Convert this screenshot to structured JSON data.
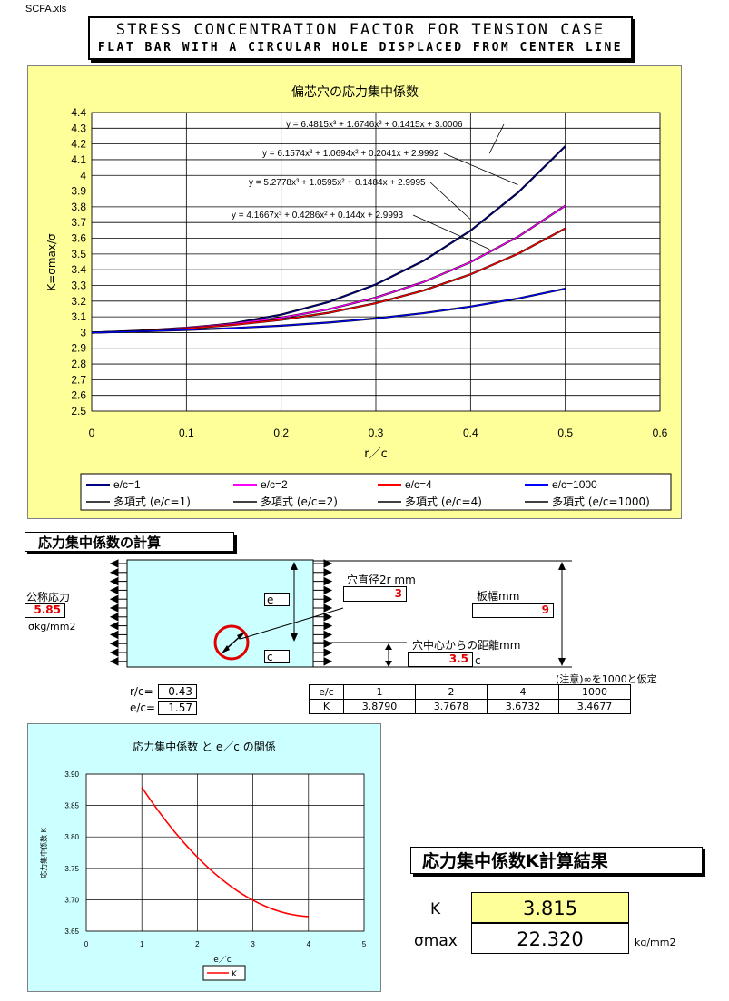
{
  "file_name": "SCFA.xls",
  "title": {
    "line1": "STRESS CONCENTRATION FACTOR FOR TENSION CASE",
    "line2": "FLAT BAR WITH A CIRCULAR HOLE DISPLACED FROM CENTER LINE"
  },
  "chart_data": [
    {
      "type": "line",
      "title": "偏芯穴の応力集中係数",
      "xlabel": "r／c",
      "ylabel": "K=σmax/σ",
      "xlim": [
        0,
        0.6
      ],
      "ylim": [
        2.5,
        4.4
      ],
      "x_ticks": [
        "0",
        "0.1",
        "0.2",
        "0.3",
        "0.4",
        "0.5",
        "0.6"
      ],
      "y_ticks": [
        "2.5",
        "2.6",
        "2.7",
        "2.8",
        "2.9",
        "3",
        "3.1",
        "3.2",
        "3.3",
        "3.4",
        "3.5",
        "3.6",
        "3.7",
        "3.8",
        "3.9",
        "4",
        "4.1",
        "4.2",
        "4.3",
        "4.4"
      ],
      "grid": true,
      "legend_position": "bottom",
      "x": [
        0,
        0.05,
        0.1,
        0.15,
        0.2,
        0.25,
        0.3,
        0.35,
        0.4,
        0.45,
        0.5
      ],
      "series": [
        {
          "name": "e/c=1",
          "color": "#000080",
          "values": [
            3.0006,
            3.0091,
            3.0269,
            3.0597,
            3.1138,
            3.194,
            3.3063,
            3.4558,
            3.6486,
            3.8904,
            4.1857
          ]
        },
        {
          "name": "e/c=2",
          "color": "#ff00ff",
          "values": [
            2.9992,
            3.012,
            3.0305,
            3.0563,
            3.094,
            3.1479,
            3.2221,
            3.3209,
            3.4485,
            3.6091,
            3.8069
          ]
        },
        {
          "name": "e/c=4",
          "color": "#ff0000",
          "values": [
            2.9995,
            3.0097,
            3.0254,
            3.0489,
            3.0812,
            3.1259,
            3.1866,
            3.2669,
            3.3706,
            3.5012,
            3.6625
          ]
        },
        {
          "name": "e/c=1000",
          "color": "#0000ff",
          "values": [
            2.9993,
            3.0076,
            3.017,
            3.0287,
            3.0437,
            3.0638,
            3.0897,
            3.1232,
            3.1652,
            3.2167,
            3.2792
          ]
        }
      ],
      "trendlines": [
        {
          "name": "多項式 (e/c=1)",
          "equation": "y = 6.4815x³ + 1.6746x² + 0.1415x + 3.0006"
        },
        {
          "name": "多項式 (e/c=2)",
          "equation": "y = 6.1574x³ + 1.0694x² + 0.2041x + 2.9992"
        },
        {
          "name": "多項式 (e/c=4)",
          "equation": "y = 5.2778x³ + 1.0595x² + 0.1484x + 2.9995"
        },
        {
          "name": "多項式 (e/c=1000)",
          "equation": "y = 4.1667x³ + 0.4286x² + 0.144x + 2.9993"
        }
      ]
    },
    {
      "type": "line",
      "title": "応力集中係数 と e／c の関係",
      "xlabel": "e／c",
      "ylabel": "応力集中係数 K",
      "xlim": [
        0,
        5
      ],
      "ylim": [
        3.65,
        3.9
      ],
      "x_ticks": [
        "0",
        "1",
        "2",
        "3",
        "4",
        "5"
      ],
      "y_ticks": [
        "3.65",
        "3.70",
        "3.75",
        "3.80",
        "3.85",
        "3.90"
      ],
      "grid": true,
      "legend_position": "bottom",
      "series": [
        {
          "name": "K",
          "color": "#ff0000",
          "x": [
            1,
            2,
            4
          ],
          "values": [
            3.879,
            3.7678,
            3.6732
          ]
        }
      ]
    }
  ],
  "calc": {
    "section_title": "応力集中係数の計算",
    "nominal_stress_label": "公称応力",
    "nominal_stress_value": "5.85",
    "nominal_stress_unit": "σkg/mm2",
    "hole_diameter_label": "穴直径2r mm",
    "hole_diameter_value": "3",
    "plate_width_label": "板幅mm",
    "plate_width_value": "9",
    "center_dist_label": "穴中心からの距離mm",
    "center_dist_value": "3.5",
    "c_label": "c",
    "e_label": "e",
    "rc_label": "r/c=",
    "rc_value": "0.43",
    "ec_label": "e/c=",
    "ec_value": "1.57",
    "note": "(注意)∞を1000と仮定",
    "table_header": [
      "e/c",
      "1",
      "2",
      "4",
      "1000"
    ],
    "table_row": [
      "K",
      "3.8790",
      "3.7678",
      "3.6732",
      "3.4677"
    ]
  },
  "result": {
    "title": "応力集中係数K計算結果",
    "k_label": "K",
    "k_value": "3.815",
    "smax_label": "σmax",
    "smax_value": "22.320",
    "smax_unit": "kg/mm2"
  },
  "colors": {
    "chart1_bg": "#ffff99",
    "chart2_bg": "#ccffff",
    "k_box_bg": "#ffff99",
    "input_red": "#e00000"
  }
}
